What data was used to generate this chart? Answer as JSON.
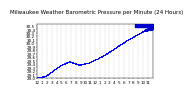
{
  "title": "Milwaukee Weather Barometric Pressure per Minute (24 Hours)",
  "title_fontsize": 4.0,
  "background_color": "#ffffff",
  "plot_bg_color": "#ffffff",
  "dot_color": "#0000ff",
  "highlight_color": "#0000cc",
  "grid_color": "#bbbbbb",
  "ylim": [
    29.0,
    30.55
  ],
  "xlim": [
    0,
    1440
  ],
  "tick_fontsize": 3.0,
  "x_tick_labels": [
    "12",
    "1",
    "2",
    "3",
    "4",
    "5",
    "6",
    "7",
    "8",
    "9",
    "10",
    "11",
    "12",
    "1",
    "2",
    "3",
    "4",
    "5",
    "6",
    "7",
    "8",
    "9",
    "10",
    "11",
    "12"
  ],
  "y_ticks": [
    29.0,
    29.1,
    29.2,
    29.3,
    29.4,
    29.5,
    29.6,
    29.7,
    29.8,
    29.9,
    30.0,
    30.1,
    30.2,
    30.3,
    30.4,
    30.5
  ],
  "y_tick_labels": [
    "29.0",
    "29.1",
    "29.2",
    "29.3",
    "29.4",
    "29.5",
    "29.6",
    "29.7",
    "29.8",
    "29.9",
    "30.0",
    "30.1",
    "30.2",
    "30.3",
    "30.4",
    "30.5"
  ],
  "dot_size": 0.4,
  "highlight_dot_size": 1.5
}
